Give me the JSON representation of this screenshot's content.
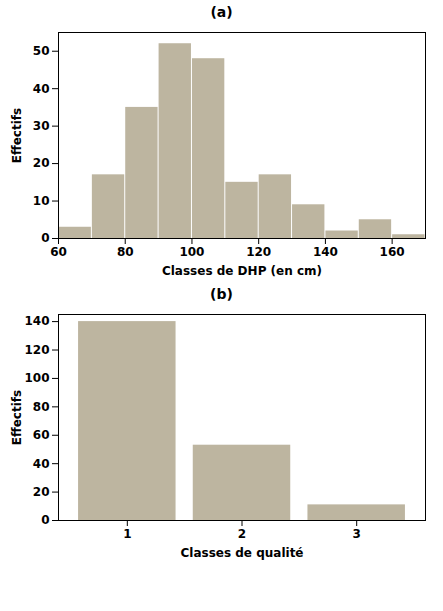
{
  "chart_data": [
    {
      "type": "histogram",
      "title": "(a)",
      "bins": [
        60,
        70,
        80,
        90,
        100,
        110,
        120,
        130,
        140,
        150,
        160,
        170
      ],
      "values": [
        3,
        17,
        35,
        52,
        48,
        15,
        17,
        9,
        2,
        5,
        1
      ],
      "color": "#bdb5a0",
      "xlim": [
        60,
        170
      ],
      "xticks": [
        60,
        80,
        100,
        120,
        140,
        160
      ],
      "ylim": [
        0,
        55
      ],
      "yticks": [
        0,
        10,
        20,
        30,
        40,
        50
      ],
      "xlabel": "Classes de DHP (en cm)",
      "ylabel": "Effectifs",
      "grid": false
    },
    {
      "type": "bar",
      "title": "(b)",
      "x": [
        1,
        2,
        3
      ],
      "values": [
        140,
        53,
        11
      ],
      "color": "#bdb5a0",
      "xlim": [
        0.4,
        3.6
      ],
      "xticks": [
        1,
        2,
        3
      ],
      "ylim": [
        0,
        145
      ],
      "yticks": [
        0,
        20,
        40,
        60,
        80,
        100,
        120,
        140
      ],
      "xlabel": "Classes de qualité",
      "ylabel": "Effectifs",
      "grid": false
    }
  ]
}
